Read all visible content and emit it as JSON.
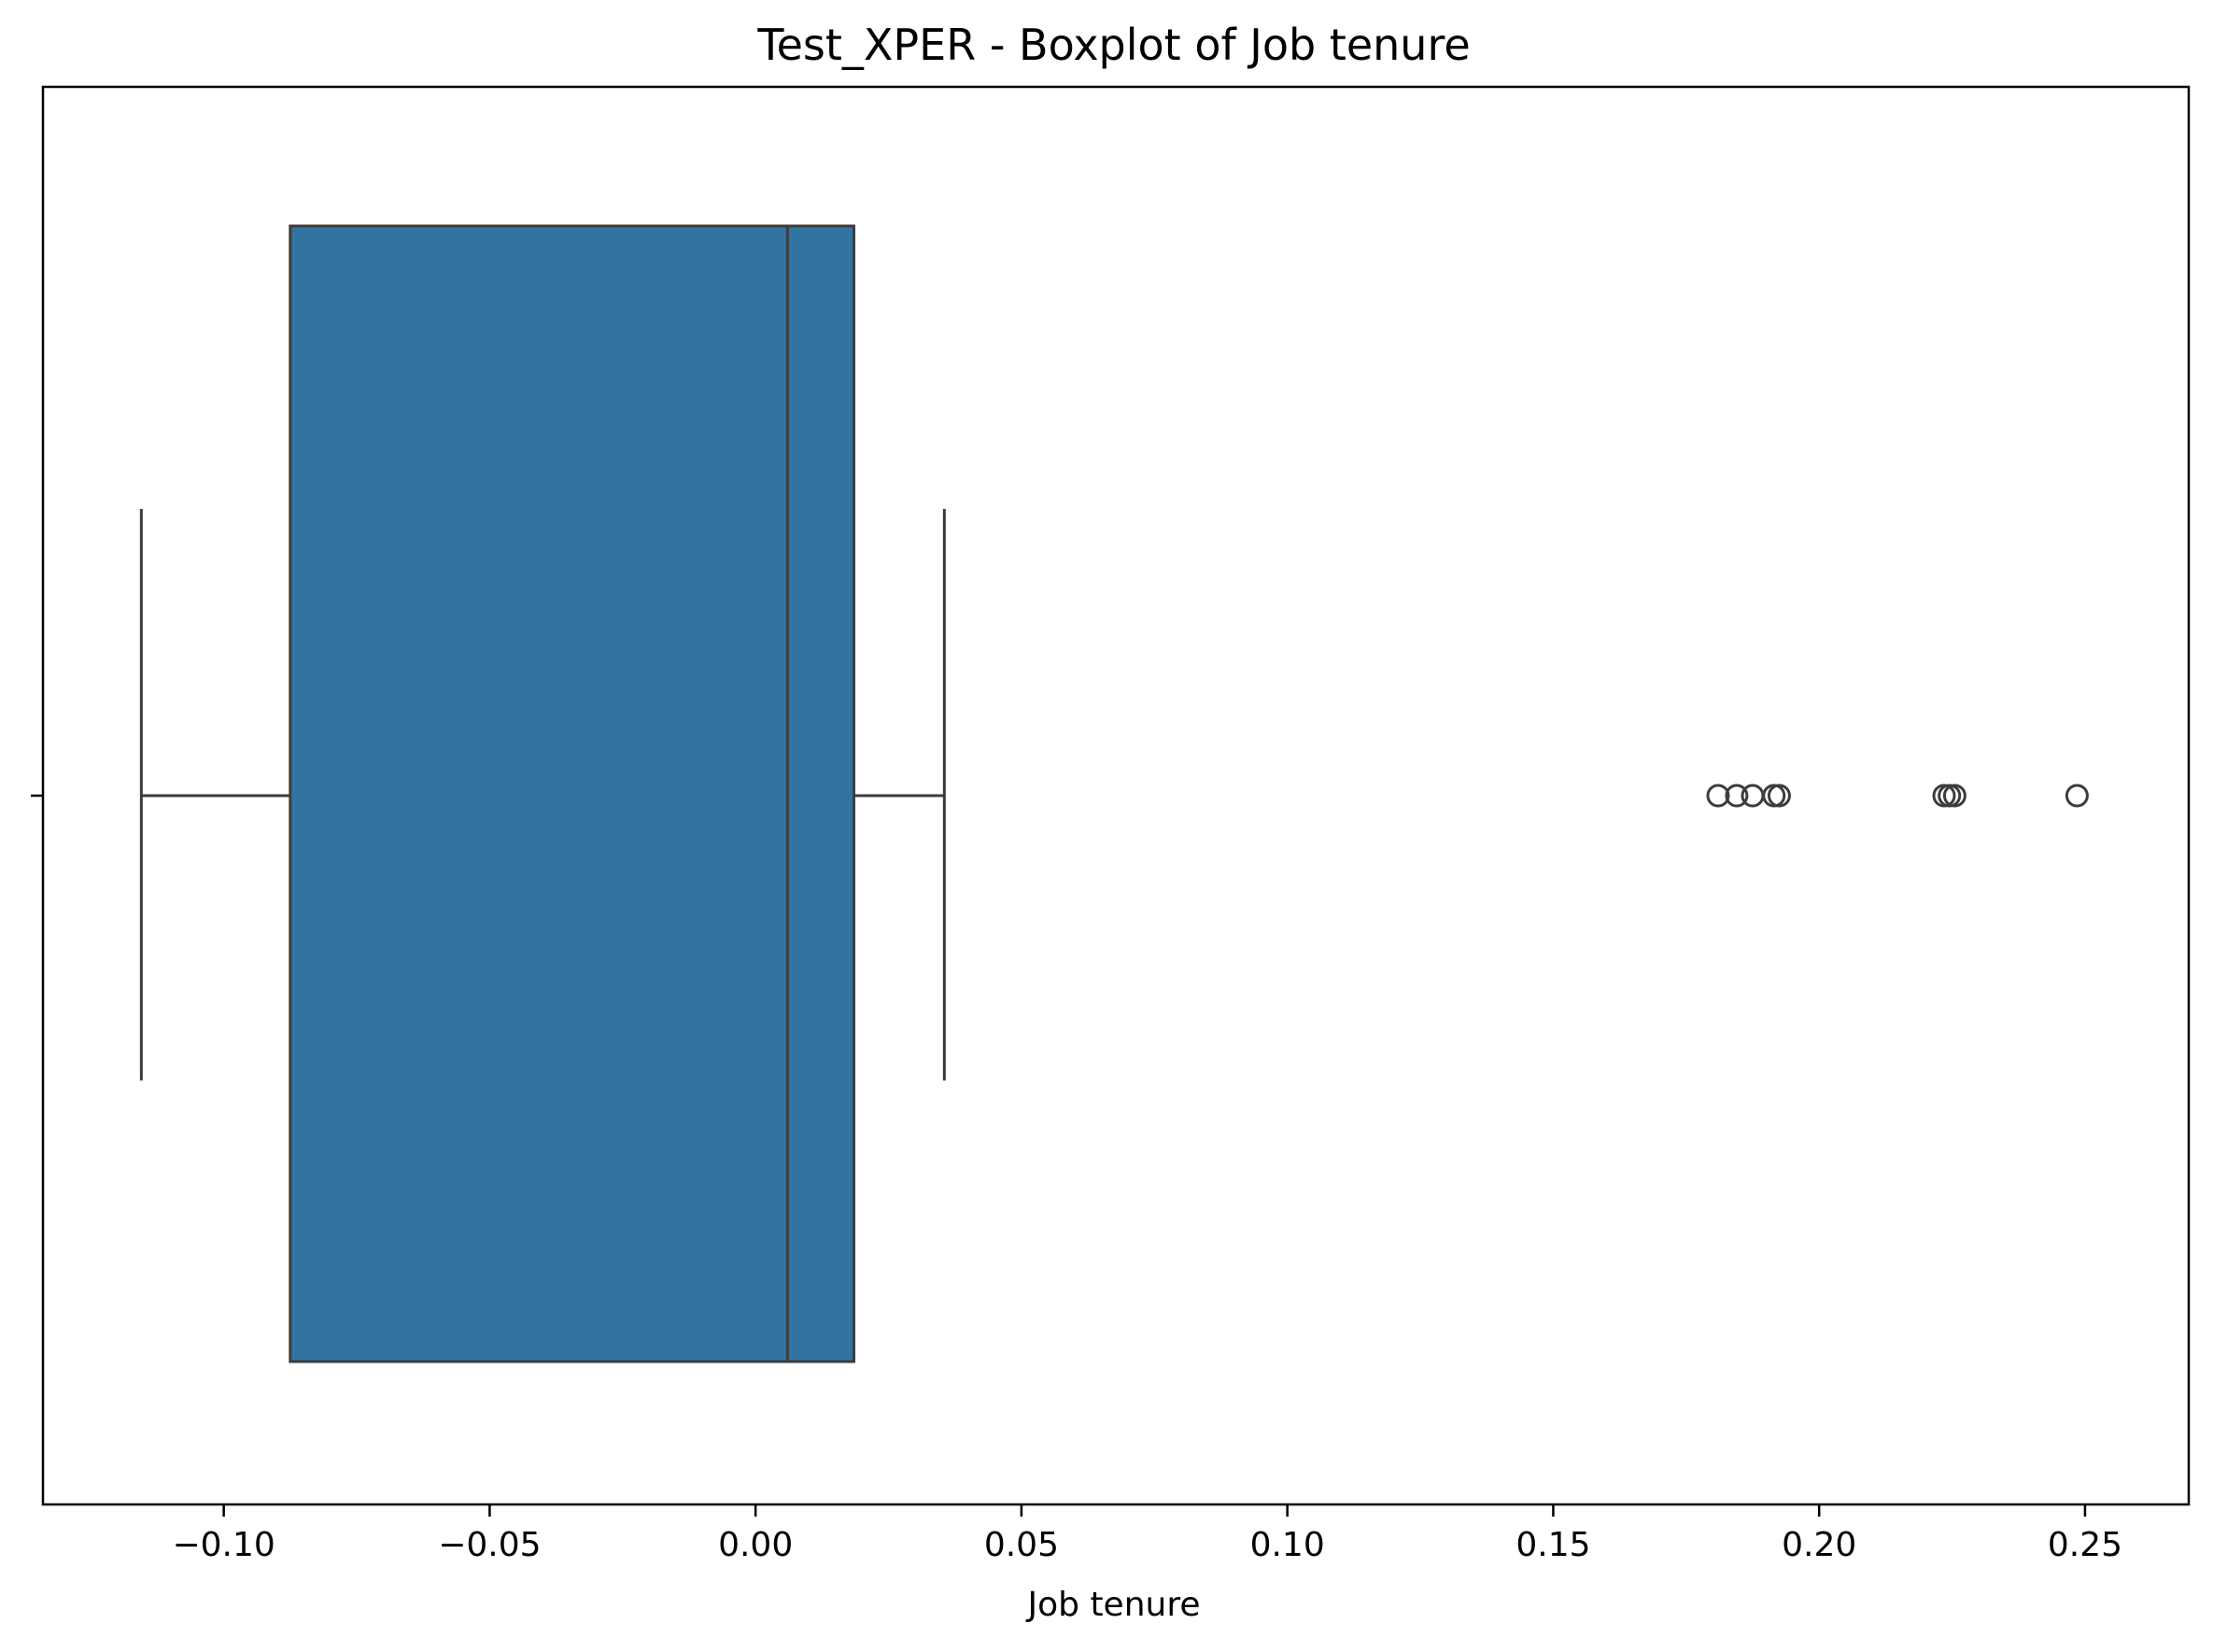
{
  "chart_data": {
    "type": "boxplot",
    "title": "Test_XPER - Boxplot of Job tenure",
    "xlabel": "Job tenure",
    "ylabel": "",
    "xlim": [
      -0.134,
      0.2695
    ],
    "xticks": [
      -0.1,
      -0.05,
      0.0,
      0.05,
      0.1,
      0.15,
      0.2,
      0.25
    ],
    "xtick_labels": [
      "−0.10",
      "−0.05",
      "0.00",
      "0.05",
      "0.10",
      "0.15",
      "0.20",
      "0.25"
    ],
    "orientation": "horizontal",
    "box": {
      "whisker_low": -0.1155,
      "q1": -0.0875,
      "median": 0.006,
      "q3": 0.0185,
      "whisker_high": 0.0355
    },
    "outliers": [
      0.181,
      0.1845,
      0.1875,
      0.1915,
      0.1925,
      0.2235,
      0.2245,
      0.2255,
      0.2485
    ],
    "colors": {
      "box_fill": "#3274a1",
      "line": "#3d3d3d",
      "axes": "#000000"
    }
  }
}
